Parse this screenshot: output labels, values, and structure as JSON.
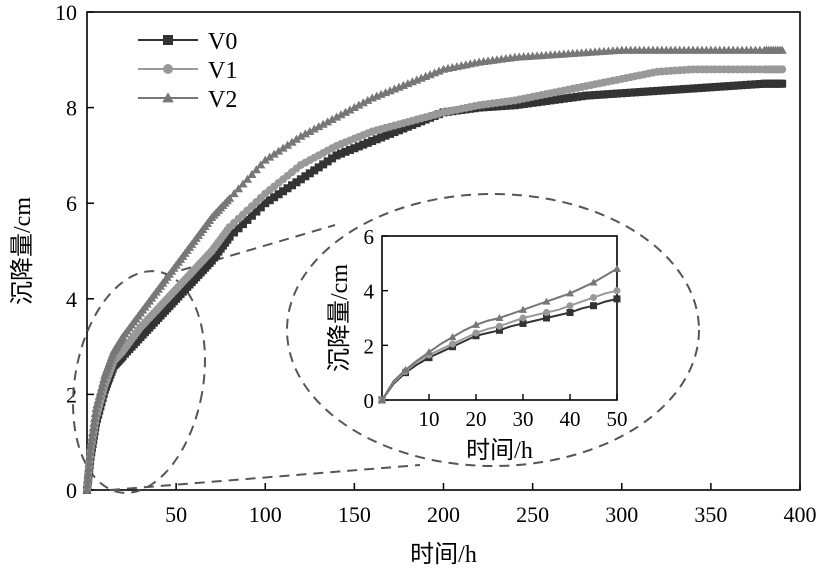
{
  "chart_data": [
    {
      "type": "line",
      "xlabel": "时间/h",
      "ylabel": "沉降量/cm",
      "xlim": [
        0,
        400
      ],
      "ylim": [
        0,
        10
      ],
      "xticks": [
        50,
        100,
        150,
        200,
        250,
        300,
        350,
        400
      ],
      "yticks": [
        0,
        2,
        4,
        6,
        8,
        10
      ],
      "legend_position": "top-left",
      "grid": false,
      "series": [
        {
          "name": "V0",
          "marker": "square",
          "color": "#333333",
          "x": [
            0,
            2,
            5,
            10,
            15,
            20,
            30,
            40,
            50,
            60,
            70,
            80,
            100,
            120,
            140,
            160,
            180,
            200,
            220,
            240,
            260,
            280,
            300,
            320,
            340,
            360,
            380,
            390
          ],
          "y": [
            0,
            0.7,
            1.4,
            2.1,
            2.6,
            2.8,
            3.2,
            3.6,
            4.0,
            4.4,
            4.8,
            5.3,
            6.0,
            6.5,
            7.0,
            7.3,
            7.6,
            7.9,
            8.0,
            8.05,
            8.15,
            8.25,
            8.3,
            8.35,
            8.4,
            8.45,
            8.5,
            8.5
          ]
        },
        {
          "name": "V1",
          "marker": "circle",
          "color": "#999999",
          "x": [
            0,
            2,
            5,
            10,
            15,
            20,
            30,
            40,
            50,
            60,
            70,
            80,
            100,
            120,
            140,
            160,
            180,
            200,
            220,
            240,
            260,
            280,
            300,
            320,
            340,
            360,
            380,
            390
          ],
          "y": [
            0,
            0.8,
            1.5,
            2.2,
            2.7,
            2.9,
            3.4,
            3.8,
            4.2,
            4.6,
            5.0,
            5.5,
            6.2,
            6.8,
            7.2,
            7.5,
            7.7,
            7.9,
            8.05,
            8.15,
            8.3,
            8.45,
            8.6,
            8.75,
            8.8,
            8.8,
            8.8,
            8.8
          ]
        },
        {
          "name": "V2",
          "marker": "triangle",
          "color": "#777777",
          "x": [
            0,
            2,
            5,
            10,
            15,
            20,
            30,
            40,
            50,
            60,
            70,
            80,
            100,
            120,
            140,
            160,
            180,
            200,
            220,
            240,
            260,
            280,
            300,
            320,
            340,
            360,
            380,
            390
          ],
          "y": [
            0,
            0.9,
            1.7,
            2.4,
            2.9,
            3.2,
            3.7,
            4.2,
            4.7,
            5.2,
            5.7,
            6.1,
            6.9,
            7.4,
            7.8,
            8.2,
            8.5,
            8.8,
            8.95,
            9.05,
            9.1,
            9.15,
            9.2,
            9.2,
            9.2,
            9.2,
            9.2,
            9.2
          ]
        }
      ]
    },
    {
      "type": "line",
      "xlabel": "时间/h",
      "ylabel": "沉降量/cm",
      "xlim": [
        0,
        50
      ],
      "ylim": [
        0,
        6
      ],
      "xticks": [
        10,
        20,
        30,
        40,
        50
      ],
      "yticks": [
        0,
        2,
        4,
        6
      ],
      "grid": false,
      "series": [
        {
          "marker": "square",
          "color": "#333333",
          "x": [
            0,
            2.5,
            5,
            7.5,
            10,
            12.5,
            15,
            17.5,
            20,
            22.5,
            25,
            27.5,
            30,
            32.5,
            35,
            37.5,
            40,
            42.5,
            45,
            47.5,
            50
          ],
          "y": [
            0,
            0.6,
            1.0,
            1.3,
            1.55,
            1.75,
            1.95,
            2.15,
            2.35,
            2.45,
            2.55,
            2.7,
            2.8,
            2.9,
            3.0,
            3.1,
            3.2,
            3.35,
            3.45,
            3.6,
            3.7
          ]
        },
        {
          "marker": "circle",
          "color": "#999999",
          "x": [
            0,
            2.5,
            5,
            7.5,
            10,
            12.5,
            15,
            17.5,
            20,
            22.5,
            25,
            27.5,
            30,
            32.5,
            35,
            37.5,
            40,
            42.5,
            45,
            47.5,
            50
          ],
          "y": [
            0,
            0.65,
            1.05,
            1.4,
            1.65,
            1.85,
            2.05,
            2.25,
            2.45,
            2.6,
            2.7,
            2.85,
            3.0,
            3.1,
            3.2,
            3.3,
            3.45,
            3.6,
            3.75,
            3.9,
            4.0
          ]
        },
        {
          "marker": "triangle",
          "color": "#777777",
          "x": [
            0,
            2.5,
            5,
            7.5,
            10,
            12.5,
            15,
            17.5,
            20,
            22.5,
            25,
            27.5,
            30,
            32.5,
            35,
            37.5,
            40,
            42.5,
            45,
            47.5,
            50
          ],
          "y": [
            0,
            0.7,
            1.1,
            1.45,
            1.75,
            2.05,
            2.3,
            2.55,
            2.75,
            2.9,
            3.0,
            3.15,
            3.3,
            3.45,
            3.6,
            3.75,
            3.9,
            4.1,
            4.3,
            4.55,
            4.8
          ]
        }
      ]
    }
  ]
}
